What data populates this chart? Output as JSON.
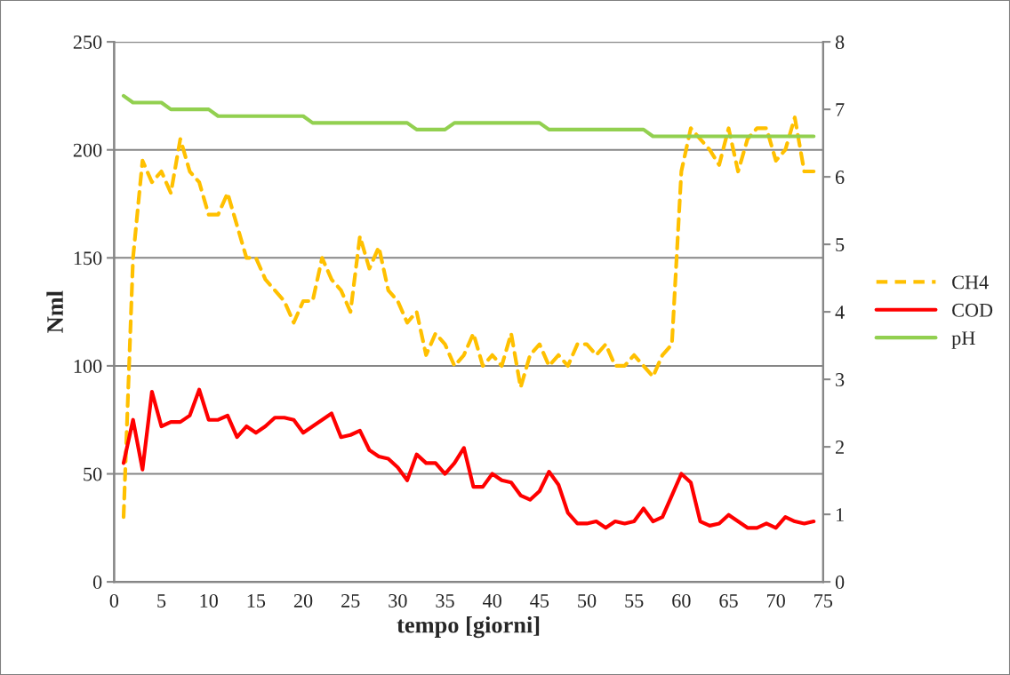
{
  "chart_data": {
    "type": "line",
    "xlabel": "tempo [giorni]",
    "ylabel": "Nml",
    "x": [
      1,
      2,
      3,
      4,
      5,
      6,
      7,
      8,
      9,
      10,
      11,
      12,
      13,
      14,
      15,
      16,
      17,
      18,
      19,
      20,
      21,
      22,
      23,
      24,
      25,
      26,
      27,
      28,
      29,
      30,
      31,
      32,
      33,
      34,
      35,
      36,
      37,
      38,
      39,
      40,
      41,
      42,
      43,
      44,
      45,
      46,
      47,
      48,
      49,
      50,
      51,
      52,
      53,
      54,
      55,
      56,
      57,
      58,
      59,
      60,
      61,
      62,
      63,
      64,
      65,
      66,
      67,
      68,
      69,
      70,
      71,
      72,
      73,
      74
    ],
    "xlim": [
      0,
      75
    ],
    "xticks": [
      0,
      5,
      10,
      15,
      20,
      25,
      30,
      35,
      40,
      45,
      50,
      55,
      60,
      65,
      70,
      75
    ],
    "ylim": [
      0,
      250
    ],
    "yticks": [
      0,
      50,
      100,
      150,
      200,
      250
    ],
    "y2lim": [
      0,
      8
    ],
    "y2ticks": [
      0,
      1,
      2,
      3,
      4,
      5,
      6,
      7,
      8
    ],
    "grid": "y",
    "legend": "right",
    "marker": "none",
    "series": [
      {
        "name": "CH4",
        "color": "#ffc000",
        "line_style": "dashed",
        "values": [
          30,
          150,
          195,
          185,
          190,
          180,
          205,
          190,
          185,
          170,
          170,
          180,
          165,
          150,
          150,
          140,
          135,
          130,
          120,
          130,
          130,
          150,
          140,
          135,
          125,
          160,
          145,
          155,
          135,
          130,
          120,
          125,
          105,
          115,
          110,
          100,
          105,
          115,
          100,
          105,
          100,
          115,
          90,
          105,
          110,
          100,
          105,
          100,
          110,
          110,
          105,
          110,
          100,
          100,
          105,
          100,
          95,
          105,
          110,
          190,
          210,
          205,
          200,
          193,
          210,
          190,
          205,
          210,
          210,
          195,
          200,
          215,
          190,
          190
        ]
      },
      {
        "name": "COD",
        "color": "#ff0000",
        "line_style": "solid",
        "values": [
          55,
          75,
          52,
          88,
          72,
          74,
          74,
          77,
          89,
          75,
          75,
          77,
          67,
          72,
          69,
          72,
          76,
          76,
          75,
          69,
          72,
          75,
          78,
          67,
          68,
          70,
          61,
          58,
          57,
          53,
          47,
          59,
          55,
          55,
          50,
          55,
          62,
          44,
          44,
          50,
          47,
          46,
          40,
          38,
          42,
          51,
          45,
          32,
          27,
          27,
          28,
          25,
          28,
          27,
          28,
          34,
          28,
          30,
          40,
          50,
          46,
          28,
          26,
          27,
          31,
          28,
          25,
          25,
          27,
          25,
          30,
          28,
          27,
          28
        ]
      },
      {
        "name": "pH",
        "color": "#92d050",
        "line_style": "solid",
        "axis": "y2",
        "values": [
          7.2,
          7.1,
          7.1,
          7.1,
          7.1,
          7.0,
          7.0,
          7.0,
          7.0,
          7.0,
          6.9,
          6.9,
          6.9,
          6.9,
          6.9,
          6.9,
          6.9,
          6.9,
          6.9,
          6.9,
          6.8,
          6.8,
          6.8,
          6.8,
          6.8,
          6.8,
          6.8,
          6.8,
          6.8,
          6.8,
          6.8,
          6.7,
          6.7,
          6.7,
          6.7,
          6.8,
          6.8,
          6.8,
          6.8,
          6.8,
          6.8,
          6.8,
          6.8,
          6.8,
          6.8,
          6.7,
          6.7,
          6.7,
          6.7,
          6.7,
          6.7,
          6.7,
          6.7,
          6.7,
          6.7,
          6.7,
          6.6,
          6.6,
          6.6,
          6.6,
          6.6,
          6.6,
          6.6,
          6.6,
          6.6,
          6.6,
          6.6,
          6.6,
          6.6,
          6.6,
          6.6,
          6.6,
          6.6,
          6.6
        ]
      }
    ]
  }
}
